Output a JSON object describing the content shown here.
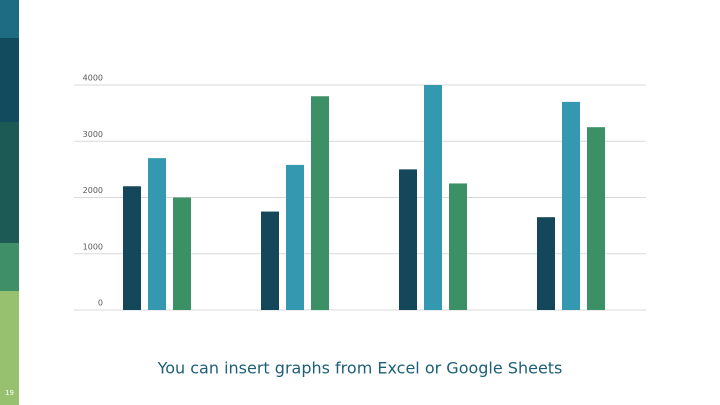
{
  "chart_data": {
    "type": "bar",
    "categories": [
      null,
      null,
      null,
      null
    ],
    "series": [
      {
        "color": "#15475a",
        "values": [
          2200,
          1750,
          2500,
          1650
        ]
      },
      {
        "color": "#3499b0",
        "values": [
          2700,
          2580,
          4000,
          3700
        ]
      },
      {
        "color": "#3c9066",
        "values": [
          2000,
          3800,
          2250,
          3250
        ]
      }
    ],
    "ylim": [
      0,
      4000
    ],
    "yticks": [
      0,
      1000,
      2000,
      3000,
      4000
    ],
    "grid": true
  },
  "caption": "You can insert graphs from Excel or Google Sheets",
  "slide_number": "19"
}
